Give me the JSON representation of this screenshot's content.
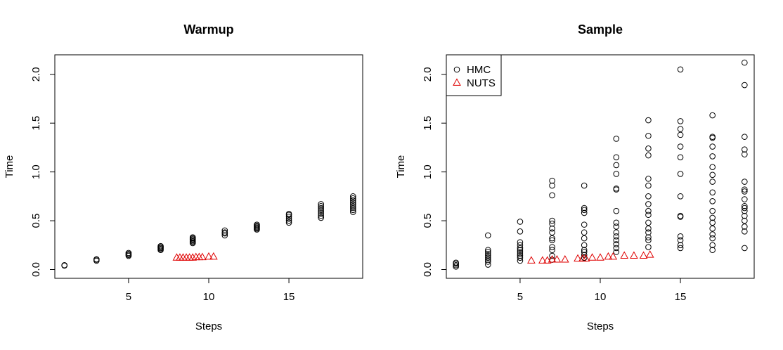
{
  "chart_data": [
    {
      "type": "scatter",
      "title": "Warmup",
      "xlabel": "Steps",
      "ylabel": "Time",
      "xlim": [
        0.4,
        19.6
      ],
      "ylim": [
        -0.09,
        2.2
      ],
      "xticks": [
        5,
        10,
        15
      ],
      "yticks": [
        0.0,
        0.5,
        1.0,
        1.5,
        2.0
      ],
      "xtick_labels": [
        "5",
        "10",
        "15"
      ],
      "ytick_labels": [
        "0.0",
        "0.5",
        "1.0",
        "1.5",
        "2.0"
      ],
      "grid": false,
      "series": [
        {
          "marker": "circle",
          "color": "#000000",
          "points": [
            [
              1,
              0.04
            ],
            [
              1,
              0.045
            ],
            [
              3,
              0.09
            ],
            [
              3,
              0.1
            ],
            [
              3,
              0.105
            ],
            [
              5,
              0.14
            ],
            [
              5,
              0.15
            ],
            [
              5,
              0.16
            ],
            [
              5,
              0.17
            ],
            [
              7,
              0.2
            ],
            [
              7,
              0.21
            ],
            [
              7,
              0.22
            ],
            [
              7,
              0.23
            ],
            [
              7,
              0.24
            ],
            [
              9,
              0.27
            ],
            [
              9,
              0.28
            ],
            [
              9,
              0.29
            ],
            [
              9,
              0.3
            ],
            [
              9,
              0.31
            ],
            [
              9,
              0.32
            ],
            [
              9,
              0.33
            ],
            [
              11,
              0.35
            ],
            [
              11,
              0.37
            ],
            [
              11,
              0.38
            ],
            [
              11,
              0.4
            ],
            [
              13,
              0.41
            ],
            [
              13,
              0.42
            ],
            [
              13,
              0.43
            ],
            [
              13,
              0.44
            ],
            [
              13,
              0.45
            ],
            [
              13,
              0.46
            ],
            [
              15,
              0.48
            ],
            [
              15,
              0.5
            ],
            [
              15,
              0.52
            ],
            [
              15,
              0.54
            ],
            [
              15,
              0.56
            ],
            [
              15,
              0.57
            ],
            [
              17,
              0.53
            ],
            [
              17,
              0.55
            ],
            [
              17,
              0.57
            ],
            [
              17,
              0.59
            ],
            [
              17,
              0.61
            ],
            [
              17,
              0.63
            ],
            [
              17,
              0.65
            ],
            [
              17,
              0.67
            ],
            [
              19,
              0.59
            ],
            [
              19,
              0.61
            ],
            [
              19,
              0.63
            ],
            [
              19,
              0.65
            ],
            [
              19,
              0.67
            ],
            [
              19,
              0.69
            ],
            [
              19,
              0.71
            ],
            [
              19,
              0.73
            ],
            [
              19,
              0.75
            ]
          ]
        },
        {
          "marker": "triangle",
          "color": "#DF0000",
          "points": [
            [
              8.0,
              0.12
            ],
            [
              8.2,
              0.12
            ],
            [
              8.4,
              0.12
            ],
            [
              8.6,
              0.12
            ],
            [
              8.8,
              0.12
            ],
            [
              9.0,
              0.12
            ],
            [
              9.2,
              0.125
            ],
            [
              9.4,
              0.125
            ],
            [
              9.6,
              0.125
            ],
            [
              10.0,
              0.13
            ],
            [
              10.3,
              0.13
            ]
          ]
        }
      ]
    },
    {
      "type": "scatter",
      "title": "Sample",
      "xlabel": "Steps",
      "ylabel": "Time",
      "xlim": [
        0.4,
        19.6
      ],
      "ylim": [
        -0.09,
        2.2
      ],
      "xticks": [
        5,
        10,
        15
      ],
      "yticks": [
        0.0,
        0.5,
        1.0,
        1.5,
        2.0
      ],
      "xtick_labels": [
        "5",
        "10",
        "15"
      ],
      "ytick_labels": [
        "0.0",
        "0.5",
        "1.0",
        "1.5",
        "2.0"
      ],
      "grid": false,
      "legend": {
        "position": "top-left",
        "entries": [
          {
            "label": "HMC",
            "marker": "circle",
            "color": "#000000"
          },
          {
            "label": "NUTS",
            "marker": "triangle",
            "color": "#DF0000"
          }
        ]
      },
      "series": [
        {
          "name": "HMC",
          "marker": "circle",
          "color": "#000000",
          "points": [
            [
              1,
              0.03
            ],
            [
              1,
              0.045
            ],
            [
              1,
              0.06
            ],
            [
              1,
              0.07
            ],
            [
              3,
              0.05
            ],
            [
              3,
              0.08
            ],
            [
              3,
              0.1
            ],
            [
              3,
              0.12
            ],
            [
              3,
              0.14
            ],
            [
              3,
              0.16
            ],
            [
              3,
              0.18
            ],
            [
              3,
              0.2
            ],
            [
              3,
              0.35
            ],
            [
              5,
              0.09
            ],
            [
              5,
              0.12
            ],
            [
              5,
              0.14
            ],
            [
              5,
              0.16
            ],
            [
              5,
              0.18
            ],
            [
              5,
              0.2
            ],
            [
              5,
              0.22
            ],
            [
              5,
              0.25
            ],
            [
              5,
              0.28
            ],
            [
              5,
              0.39
            ],
            [
              5,
              0.49
            ],
            [
              7,
              0.1
            ],
            [
              7,
              0.14
            ],
            [
              7,
              0.2
            ],
            [
              7,
              0.23
            ],
            [
              7,
              0.3
            ],
            [
              7,
              0.32
            ],
            [
              7,
              0.38
            ],
            [
              7,
              0.42
            ],
            [
              7,
              0.47
            ],
            [
              7,
              0.5
            ],
            [
              7,
              0.76
            ],
            [
              7,
              0.86
            ],
            [
              7,
              0.91
            ],
            [
              9,
              0.12
            ],
            [
              9,
              0.15
            ],
            [
              9,
              0.18
            ],
            [
              9,
              0.2
            ],
            [
              9,
              0.25
            ],
            [
              9,
              0.32
            ],
            [
              9,
              0.38
            ],
            [
              9,
              0.46
            ],
            [
              9,
              0.58
            ],
            [
              9,
              0.61
            ],
            [
              9,
              0.63
            ],
            [
              9,
              0.86
            ],
            [
              11,
              0.18
            ],
            [
              11,
              0.22
            ],
            [
              11,
              0.26
            ],
            [
              11,
              0.3
            ],
            [
              11,
              0.34
            ],
            [
              11,
              0.38
            ],
            [
              11,
              0.44
            ],
            [
              11,
              0.48
            ],
            [
              11,
              0.6
            ],
            [
              11,
              0.82
            ],
            [
              11,
              0.83
            ],
            [
              11,
              0.98
            ],
            [
              11,
              1.07
            ],
            [
              11,
              1.15
            ],
            [
              11,
              1.34
            ],
            [
              13,
              0.23
            ],
            [
              13,
              0.3
            ],
            [
              13,
              0.33
            ],
            [
              13,
              0.38
            ],
            [
              13,
              0.42
            ],
            [
              13,
              0.48
            ],
            [
              13,
              0.56
            ],
            [
              13,
              0.6
            ],
            [
              13,
              0.67
            ],
            [
              13,
              0.75
            ],
            [
              13,
              0.86
            ],
            [
              13,
              0.93
            ],
            [
              13,
              1.17
            ],
            [
              13,
              1.24
            ],
            [
              13,
              1.37
            ],
            [
              13,
              1.53
            ],
            [
              15,
              0.22
            ],
            [
              15,
              0.25
            ],
            [
              15,
              0.3
            ],
            [
              15,
              0.34
            ],
            [
              15,
              0.54
            ],
            [
              15,
              0.55
            ],
            [
              15,
              0.75
            ],
            [
              15,
              0.98
            ],
            [
              15,
              1.15
            ],
            [
              15,
              1.26
            ],
            [
              15,
              1.38
            ],
            [
              15,
              1.44
            ],
            [
              15,
              1.52
            ],
            [
              15,
              2.05
            ],
            [
              17,
              0.2
            ],
            [
              17,
              0.25
            ],
            [
              17,
              0.32
            ],
            [
              17,
              0.36
            ],
            [
              17,
              0.42
            ],
            [
              17,
              0.48
            ],
            [
              17,
              0.53
            ],
            [
              17,
              0.6
            ],
            [
              17,
              0.7
            ],
            [
              17,
              0.79
            ],
            [
              17,
              0.9
            ],
            [
              17,
              0.97
            ],
            [
              17,
              1.05
            ],
            [
              17,
              1.16
            ],
            [
              17,
              1.26
            ],
            [
              17,
              1.35
            ],
            [
              17,
              1.36
            ],
            [
              17,
              1.58
            ],
            [
              19,
              0.22
            ],
            [
              19,
              0.39
            ],
            [
              19,
              0.44
            ],
            [
              19,
              0.5
            ],
            [
              19,
              0.55
            ],
            [
              19,
              0.6
            ],
            [
              19,
              0.63
            ],
            [
              19,
              0.65
            ],
            [
              19,
              0.72
            ],
            [
              19,
              0.8
            ],
            [
              19,
              0.82
            ],
            [
              19,
              0.9
            ],
            [
              19,
              1.18
            ],
            [
              19,
              1.23
            ],
            [
              19,
              1.36
            ],
            [
              19,
              1.89
            ],
            [
              19,
              2.12
            ]
          ]
        },
        {
          "name": "NUTS",
          "marker": "triangle",
          "color": "#DF0000",
          "points": [
            [
              5.7,
              0.09
            ],
            [
              6.4,
              0.09
            ],
            [
              6.7,
              0.09
            ],
            [
              7.0,
              0.1
            ],
            [
              7.3,
              0.1
            ],
            [
              7.8,
              0.1
            ],
            [
              8.6,
              0.11
            ],
            [
              8.9,
              0.11
            ],
            [
              9.1,
              0.11
            ],
            [
              9.5,
              0.12
            ],
            [
              10.0,
              0.12
            ],
            [
              10.5,
              0.13
            ],
            [
              10.8,
              0.13
            ],
            [
              11.5,
              0.14
            ],
            [
              12.1,
              0.14
            ],
            [
              12.7,
              0.14
            ],
            [
              13.1,
              0.15
            ]
          ]
        }
      ]
    }
  ]
}
